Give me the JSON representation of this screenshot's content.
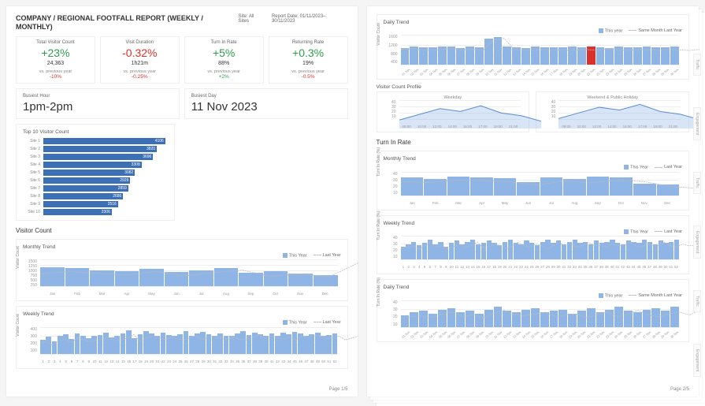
{
  "colors": {
    "bar": "#8fb4e6",
    "bar_dark": "#3b6fb6",
    "highlight": "#d9322d",
    "grid": "#eeeeee",
    "lastyear_line": "#bbbbbb",
    "green": "#2e9e4a",
    "red": "#d9322d"
  },
  "header": {
    "title": "COMPANY / REGIONAL FOOTFALL REPORT (WEEKLY / MONTHLY)",
    "site_label": "Site: All Sites",
    "report_date": "Report Date: 01/11/2023–30/11/2023"
  },
  "kpis": [
    {
      "label": "Total Visitor Count",
      "main": "+23%",
      "main_color": "green",
      "sub": "24,363",
      "vs_label": "vs. previous year",
      "vs_val": "-10%",
      "vs_color": "red"
    },
    {
      "label": "Visit Duration",
      "main": "-0.32%",
      "main_color": "red",
      "sub": "1h21m",
      "vs_label": "vs. previous year",
      "vs_val": "-0.25%",
      "vs_color": "red"
    },
    {
      "label": "Turn In Rate",
      "main": "+5%",
      "main_color": "green",
      "sub": "88%",
      "vs_label": "vs. previous year",
      "vs_val": "+2%",
      "vs_color": "green"
    },
    {
      "label": "Returning Rate",
      "main": "+0.3%",
      "main_color": "green",
      "sub": "19%",
      "vs_label": "vs. previous year",
      "vs_val": "-0.5%",
      "vs_color": "red"
    }
  ],
  "busiest_hour": {
    "label": "Busiest Hour",
    "value": "1pm-2pm"
  },
  "busiest_day": {
    "label": "Busiest Day",
    "value": "11 Nov 2023"
  },
  "top10": {
    "title": "Top 10 Visitor Count",
    "items": [
      {
        "label": "Site 1",
        "value": 4106,
        "disp": "4106"
      },
      {
        "label": "Site 2",
        "value": 3820,
        "disp": "3820"
      },
      {
        "label": "Site 3",
        "value": 3696,
        "disp": "3696"
      },
      {
        "label": "Site 4",
        "value": 3308,
        "disp": "3308"
      },
      {
        "label": "Site 5",
        "value": 3082,
        "disp": "3082"
      },
      {
        "label": "Site 6",
        "value": 2929,
        "disp": "2929"
      },
      {
        "label": "Site 7",
        "value": 2859,
        "disp": "2859"
      },
      {
        "label": "Site 8",
        "value": 2686,
        "disp": "2686"
      },
      {
        "label": "Site 9",
        "value": 2516,
        "disp": "2516"
      },
      {
        "label": "Site 10",
        "value": 2306,
        "disp": "2306"
      }
    ],
    "max": 4200
  },
  "visitor_count": {
    "section": "Visitor Count",
    "monthly": {
      "title": "Monthly Trend",
      "legend": [
        "This Year",
        "Last Year"
      ],
      "yticks": [
        "1500",
        "1250",
        "1000",
        "750",
        "500",
        "250"
      ],
      "ylabel": "Visitor Count",
      "categories": [
        "Jan",
        "Feb",
        "Mar",
        "Apr",
        "May",
        "Jun",
        "Jul",
        "Aug",
        "Sep",
        "Oct",
        "Nov",
        "Dec"
      ],
      "values": [
        1050,
        1000,
        900,
        820,
        980,
        800,
        880,
        1020,
        760,
        860,
        700,
        620
      ],
      "last_year": [
        900,
        1000,
        920,
        850,
        1000,
        820,
        960,
        1050,
        800,
        900,
        780,
        1350
      ],
      "ymax": 1500
    },
    "weekly": {
      "title": "Weekly Trend",
      "legend": [
        "This Year",
        "Last Year"
      ],
      "yticks": [
        "400",
        "300",
        "200",
        "100"
      ],
      "ylabel": "Visitor Count",
      "values": [
        210,
        250,
        180,
        260,
        290,
        220,
        300,
        260,
        230,
        270,
        280,
        310,
        240,
        260,
        300,
        350,
        230,
        290,
        330,
        300,
        260,
        310,
        280,
        260,
        290,
        340,
        260,
        300,
        320,
        290,
        260,
        300,
        270,
        260,
        300,
        330,
        280,
        310,
        290,
        270,
        300,
        260,
        310,
        290,
        320,
        300,
        270,
        290,
        310,
        260,
        280,
        300
      ],
      "last_year": [
        230,
        240,
        200,
        250,
        270,
        230,
        280,
        260,
        240,
        260,
        270,
        290,
        250,
        260,
        280,
        320,
        240,
        280,
        300,
        290,
        260,
        290,
        270,
        260,
        280,
        310,
        260,
        290,
        300,
        280,
        260,
        290,
        270,
        260,
        290,
        310,
        280,
        300,
        290,
        270,
        290,
        260,
        300,
        290,
        310,
        300,
        270,
        290,
        300,
        260,
        280,
        300
      ],
      "ymax": 400
    }
  },
  "daily_trend": {
    "title": "Daily Trend",
    "legend": [
      "This year",
      "Same Month Last Year"
    ],
    "yticks": [
      "1600",
      "1200",
      "800",
      "400"
    ],
    "ylabel": "Visitor Count",
    "categories": [
      "01 Nov",
      "02 Nov",
      "03 Nov",
      "04 Nov",
      "05 Nov",
      "06 Nov",
      "07 Nov",
      "08 Nov",
      "09 Nov",
      "10 Nov",
      "11 Nov",
      "12 Nov",
      "13 Nov",
      "14 Nov",
      "15 Nov",
      "16 Nov",
      "17 Nov",
      "18 Nov",
      "19 Nov",
      "20 Nov",
      "21 Nov",
      "22 Nov",
      "23 Nov",
      "24 Nov",
      "25 Nov",
      "26 Nov",
      "27 Nov",
      "28 Nov",
      "29 Nov",
      "30 Nov"
    ],
    "values": [
      920,
      980,
      960,
      940,
      980,
      1000,
      920,
      980,
      960,
      1400,
      1500,
      980,
      960,
      920,
      980,
      960,
      940,
      960,
      980,
      940,
      1000,
      960,
      920,
      980,
      960,
      940,
      980,
      960,
      940,
      980
    ],
    "highlight_index": 20,
    "last_year": [
      1000,
      1020,
      980,
      960,
      1000,
      1040,
      980,
      1000,
      980,
      1380,
      1450,
      1000,
      980,
      960,
      1000,
      980,
      960,
      980,
      1000,
      960,
      1020,
      980,
      960,
      1000,
      980,
      960,
      1000,
      980,
      960,
      1000
    ],
    "ymax": 1600
  },
  "profile": {
    "title": "Visitor Count Profile",
    "weekday": {
      "title": "Weekday",
      "yticks": [
        "40",
        "30",
        "20",
        "10"
      ],
      "categories": [
        "09:00",
        "10:00",
        "12:00",
        "14:00",
        "16:00",
        "17:00",
        "19:00",
        "21:00"
      ],
      "values": [
        12,
        20,
        28,
        24,
        32,
        22,
        18,
        10
      ],
      "ymax": 40
    },
    "weekend": {
      "title": "Weekend & Public Holiday",
      "yticks": [
        "40",
        "30",
        "20",
        "10"
      ],
      "categories": [
        "09:00",
        "10:00",
        "12:00",
        "14:00",
        "16:00",
        "17:00",
        "19:00",
        "21:00"
      ],
      "values": [
        14,
        22,
        30,
        26,
        34,
        24,
        20,
        12
      ],
      "ymax": 40
    }
  },
  "turn_in": {
    "section": "Turn In Rate",
    "monthly": {
      "title": "Monthly Trend",
      "legend": [
        "This Year",
        "Last Year"
      ],
      "yticks": [
        "40",
        "30",
        "20",
        "10"
      ],
      "ylabel": "Turn In Rate (%)",
      "categories": [
        "Jan",
        "Feb",
        "Mar",
        "Apr",
        "May",
        "Jun",
        "Jul",
        "Aug",
        "Sep",
        "Oct",
        "Nov",
        "Dec"
      ],
      "values": [
        30,
        28,
        32,
        31,
        29,
        22,
        30,
        28,
        32,
        30,
        20,
        18
      ],
      "last_year": [
        28,
        27,
        30,
        30,
        28,
        24,
        29,
        27,
        30,
        28,
        22,
        20
      ],
      "ymax": 40
    },
    "weekly": {
      "title": "Weekly Trend",
      "legend": [
        "This Year",
        "Last Year"
      ],
      "yticks": [
        "40",
        "30",
        "20",
        "10"
      ],
      "ylabel": "Turn In Rate (%)",
      "values": [
        22,
        26,
        30,
        24,
        28,
        34,
        26,
        30,
        22,
        28,
        32,
        26,
        30,
        34,
        26,
        28,
        32,
        28,
        24,
        30,
        34,
        28,
        26,
        32,
        28,
        24,
        30,
        34,
        28,
        32,
        26,
        30,
        34,
        28,
        30,
        26,
        32,
        28,
        30,
        34,
        28,
        26,
        32,
        30,
        28,
        34,
        30,
        26,
        32,
        28,
        30,
        34
      ],
      "last_year": [
        24,
        26,
        28,
        24,
        27,
        32,
        26,
        28,
        24,
        27,
        30,
        26,
        28,
        32,
        26,
        27,
        30,
        28,
        24,
        28,
        32,
        28,
        26,
        30,
        28,
        24,
        28,
        32,
        28,
        30,
        26,
        28,
        32,
        28,
        28,
        26,
        30,
        28,
        28,
        32,
        28,
        26,
        30,
        28,
        28,
        32,
        28,
        26,
        30,
        28,
        28,
        32
      ],
      "ymax": 40
    },
    "daily": {
      "title": "Daily Trend",
      "legend": [
        "This year",
        "Same Month Last Year"
      ],
      "yticks": [
        "40",
        "30",
        "20",
        "10"
      ],
      "ylabel": "Turn In Rate (%)",
      "categories": [
        "01 Nov",
        "02 Nov",
        "03 Nov",
        "04 Nov",
        "05 Nov",
        "06 Nov",
        "07 Nov",
        "08 Nov",
        "09 Nov",
        "10 Nov",
        "11 Nov",
        "12 Nov",
        "13 Nov",
        "14 Nov",
        "15 Nov",
        "16 Nov",
        "17 Nov",
        "18 Nov",
        "19 Nov",
        "20 Nov",
        "21 Nov",
        "22 Nov",
        "23 Nov",
        "24 Nov",
        "25 Nov",
        "26 Nov",
        "27 Nov",
        "28 Nov",
        "29 Nov",
        "30 Nov"
      ],
      "values": [
        18,
        22,
        24,
        20,
        26,
        28,
        22,
        24,
        20,
        26,
        30,
        24,
        22,
        26,
        28,
        22,
        24,
        26,
        20,
        24,
        28,
        22,
        26,
        30,
        24,
        22,
        26,
        28,
        24,
        30
      ],
      "last_year": [
        20,
        22,
        23,
        21,
        25,
        27,
        22,
        24,
        21,
        26,
        29,
        24,
        23,
        25,
        27,
        22,
        24,
        25,
        21,
        24,
        27,
        22,
        25,
        29,
        24,
        22,
        25,
        27,
        24,
        29
      ],
      "ymax": 40
    }
  },
  "side_tabs": [
    "Traffic",
    "Engagement",
    "Traffic",
    "Engagement",
    "Traffic",
    "Engagement"
  ],
  "page1_num": "Page 1/5",
  "page2_num": "Page 2/5"
}
